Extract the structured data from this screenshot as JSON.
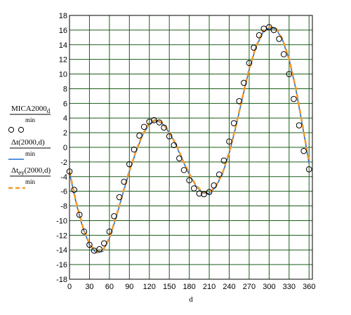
{
  "chart_data": {
    "type": "line",
    "xlabel": "d",
    "ylabel": "",
    "xlim": [
      0,
      365
    ],
    "ylim": [
      -18,
      18
    ],
    "x_ticks": [
      0,
      30,
      60,
      90,
      120,
      150,
      180,
      210,
      240,
      270,
      300,
      330,
      360
    ],
    "y_ticks": [
      -18,
      -16,
      -14,
      -12,
      -10,
      -8,
      -6,
      -4,
      -2,
      0,
      2,
      4,
      6,
      8,
      10,
      12,
      14,
      16,
      18
    ],
    "grid": true,
    "legend": [
      {
        "expr": "MICA2000",
        "sub": "d",
        "unit": "min",
        "style": "circles"
      },
      {
        "expr": "Δt(2000,d)",
        "sub": "",
        "unit": "min",
        "style": "solid"
      },
      {
        "expr": "Δt",
        "sub": "ey",
        "args": "(2000,d)",
        "unit": "min",
        "style": "dashed"
      }
    ],
    "colors": {
      "solid": "#1f6fd1",
      "dashed": "#f39a2d",
      "grid": "#1a5c1a",
      "circle": "#000000"
    },
    "series": [
      {
        "name": "MICA2000_d",
        "style": "circles",
        "x": [
          0,
          7,
          15,
          22,
          30,
          37,
          45,
          52,
          60,
          67,
          75,
          82,
          90,
          97,
          105,
          112,
          120,
          127,
          135,
          142,
          150,
          157,
          165,
          172,
          180,
          187,
          195,
          202,
          210,
          217,
          225,
          232,
          240,
          247,
          255,
          262,
          270,
          277,
          285,
          292,
          300,
          307,
          315,
          322,
          330,
          337,
          345,
          352,
          360
        ],
        "y": [
          -3.3,
          -5.8,
          -9.2,
          -11.5,
          -13.3,
          -14.1,
          -13.9,
          -13.1,
          -11.5,
          -9.4,
          -6.8,
          -4.7,
          -2.3,
          -0.3,
          1.6,
          2.8,
          3.5,
          3.7,
          3.4,
          2.7,
          1.5,
          0.3,
          -1.5,
          -3.1,
          -4.5,
          -5.6,
          -6.3,
          -6.4,
          -6.1,
          -5.2,
          -3.7,
          -1.8,
          0.8,
          3.3,
          6.3,
          8.8,
          11.5,
          13.6,
          15.3,
          16.2,
          16.4,
          16.0,
          14.8,
          12.7,
          10.0,
          6.6,
          3.0,
          -0.5,
          -3.0
        ]
      },
      {
        "name": "Δt(2000,d)",
        "style": "solid",
        "x": [
          0,
          10,
          20,
          30,
          40,
          50,
          60,
          70,
          80,
          90,
          100,
          110,
          120,
          130,
          140,
          150,
          160,
          170,
          180,
          190,
          200,
          210,
          220,
          230,
          240,
          250,
          260,
          270,
          280,
          290,
          300,
          310,
          320,
          330,
          340,
          350,
          360
        ],
        "y": [
          -3.5,
          -7.6,
          -11.0,
          -13.3,
          -14.4,
          -14.2,
          -12.4,
          -9.6,
          -6.4,
          -3.3,
          -0.6,
          1.7,
          3.2,
          3.7,
          3.2,
          2.0,
          0.3,
          -1.8,
          -3.7,
          -5.3,
          -6.2,
          -6.3,
          -5.4,
          -3.6,
          -0.8,
          2.8,
          6.8,
          10.6,
          13.6,
          15.6,
          16.3,
          16.2,
          14.7,
          12.0,
          8.0,
          3.0,
          -2.2
        ]
      },
      {
        "name": "Δt_ey(2000,d)",
        "style": "dashed",
        "x": [
          0,
          10,
          20,
          30,
          40,
          50,
          60,
          70,
          80,
          90,
          100,
          110,
          120,
          130,
          140,
          150,
          160,
          170,
          180,
          190,
          200,
          210,
          220,
          230,
          240,
          250,
          260,
          270,
          280,
          290,
          300,
          310,
          320,
          330,
          340,
          350,
          360
        ],
        "y": [
          -3.3,
          -7.5,
          -10.9,
          -13.2,
          -14.3,
          -14.1,
          -12.3,
          -9.5,
          -6.3,
          -3.2,
          -0.5,
          1.8,
          3.3,
          3.8,
          3.3,
          2.1,
          0.4,
          -1.7,
          -3.6,
          -5.2,
          -6.1,
          -6.2,
          -5.3,
          -3.5,
          -0.7,
          2.9,
          6.9,
          10.7,
          13.7,
          15.7,
          16.4,
          16.3,
          14.8,
          12.1,
          8.1,
          3.1,
          -2.1
        ]
      }
    ]
  }
}
